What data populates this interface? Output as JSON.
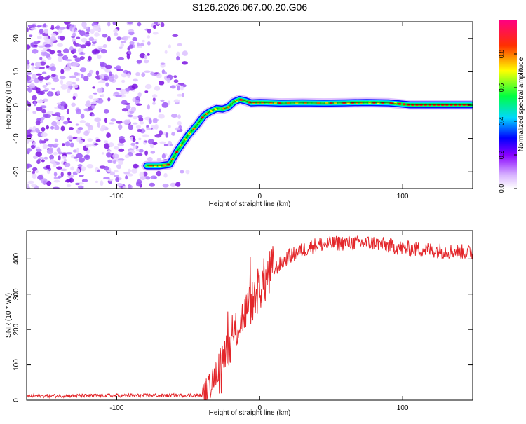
{
  "title": "S126.2026.067.00.20.G06",
  "colors": {
    "snr_line": "#e3262a",
    "axis": "#000000",
    "track_core": "#ff2010"
  },
  "chart_data": [
    {
      "type": "heatmap",
      "title": "S126.2026.067.00.20.G06",
      "xlabel": "Height of straight line (km)",
      "ylabel": "Frequency (Hz)",
      "xlim": [
        -163,
        149
      ],
      "ylim": [
        -25,
        25
      ],
      "xticks": [
        -100,
        0,
        100
      ],
      "yticks": [
        -20,
        -10,
        0,
        10,
        20
      ],
      "ridge_track": {
        "x": [
          -79,
          -70,
          -63,
          -58,
          -50,
          -44,
          -39,
          -35,
          -30,
          -26,
          -22,
          -18,
          -14,
          -10,
          -6,
          0,
          15,
          30,
          45,
          60,
          75,
          90,
          105,
          120,
          135,
          148
        ],
        "y": [
          -18.2,
          -18.2,
          -17.8,
          -14,
          -9,
          -6,
          -3.2,
          -2,
          -1,
          -1.2,
          -0.6,
          1,
          1.7,
          1.3,
          0.7,
          0.8,
          0.6,
          0.7,
          0.6,
          0.7,
          0.8,
          0.7,
          0.1,
          0.1,
          0.1,
          0.1
        ]
      },
      "colorbar": {
        "label": "Normalized spectral amplitude",
        "range": [
          0,
          1
        ],
        "ticks": [
          "0.0",
          "0.2",
          "0.4",
          "0.6",
          "0.8"
        ]
      }
    },
    {
      "type": "line",
      "xlabel": "Height of straight line (km)",
      "ylabel": "SNR (10 * v/v)",
      "xlim": [
        -163,
        149
      ],
      "ylim": [
        0,
        480
      ],
      "xticks": [
        -100,
        0,
        100
      ],
      "yticks": [
        0,
        100,
        200,
        300,
        400
      ],
      "series": [
        {
          "name": "SNR",
          "trend": {
            "x": [
              -163,
              -40,
              -35,
              -30,
              -25,
              -20,
              -15,
              -10,
              -5,
              0,
              10,
              20,
              30,
              40,
              60,
              80,
              100,
              120,
              149
            ],
            "y": [
              12,
              14,
              40,
              90,
              120,
              160,
              210,
              250,
              280,
              320,
              370,
              405,
              425,
              440,
              445,
              445,
              430,
              425,
              418
            ]
          }
        }
      ]
    }
  ]
}
